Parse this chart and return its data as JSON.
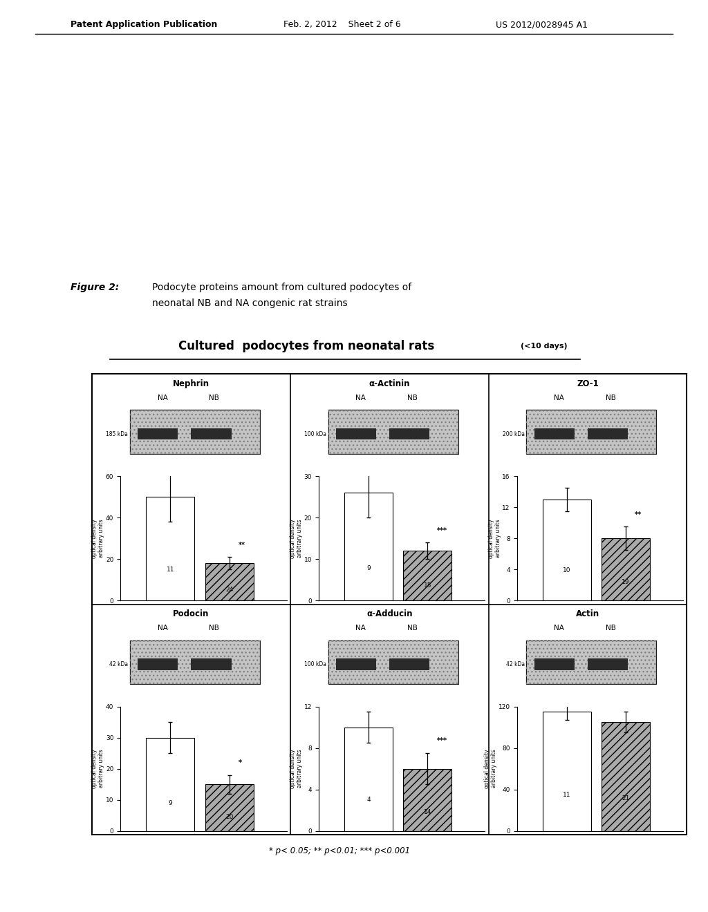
{
  "header_left": "Patent Application Publication",
  "header_mid": "Feb. 2, 2012    Sheet 2 of 6",
  "header_right": "US 2012/0028945 A1",
  "figure_label": "Figure 2:",
  "figure_caption_line1": "Podocyte proteins amount from cultured podocytes of",
  "figure_caption_line2": "neonatal NB and NA congenic rat strains",
  "main_title": "Cultured  podocytes from neonatal rats",
  "main_title_sub": "(<10 days)",
  "footer_note": "* p< 0.05; ** p<0.01; *** p<0.001",
  "panels": [
    {
      "title": "Nephrin",
      "kda_label": "185 kDa",
      "ylim": [
        0,
        60
      ],
      "yticks": [
        0,
        20,
        40,
        60
      ],
      "na_val": 50,
      "nb_val": 18,
      "na_err": 12,
      "nb_err": 3,
      "na_n": "11",
      "nb_n": "24",
      "sig": "**",
      "row": 0,
      "col": 0
    },
    {
      "title": "α-Actinin",
      "kda_label": "100 kDa",
      "ylim": [
        0,
        30
      ],
      "yticks": [
        0,
        10,
        20,
        30
      ],
      "na_val": 26,
      "nb_val": 12,
      "na_err": 6,
      "nb_err": 2,
      "na_n": "9",
      "nb_n": "15",
      "sig": "***",
      "row": 0,
      "col": 1
    },
    {
      "title": "ZO-1",
      "kda_label": "200 kDa",
      "ylim": [
        0,
        16
      ],
      "yticks": [
        0,
        4,
        8,
        12,
        16
      ],
      "na_val": 13,
      "nb_val": 8,
      "na_err": 1.5,
      "nb_err": 1.5,
      "na_n": "10",
      "nb_n": "19",
      "sig": "**",
      "row": 0,
      "col": 2
    },
    {
      "title": "Podocin",
      "kda_label": "42 kDa",
      "ylim": [
        0,
        40
      ],
      "yticks": [
        0,
        10,
        20,
        30,
        40
      ],
      "na_val": 30,
      "nb_val": 15,
      "na_err": 5,
      "nb_err": 3,
      "na_n": "9",
      "nb_n": "20",
      "sig": "*",
      "row": 1,
      "col": 0
    },
    {
      "title": "α-Adducin",
      "kda_label": "100 kDa",
      "ylim": [
        0,
        12
      ],
      "yticks": [
        0,
        4,
        8,
        12
      ],
      "na_val": 10,
      "nb_val": 6,
      "na_err": 1.5,
      "nb_err": 1.5,
      "na_n": "4",
      "nb_n": "14",
      "sig": "***",
      "row": 1,
      "col": 1
    },
    {
      "title": "Actin",
      "kda_label": "42 kDa",
      "ylim": [
        0,
        120
      ],
      "yticks": [
        0,
        40,
        80,
        120
      ],
      "na_val": 115,
      "nb_val": 105,
      "na_err": 8,
      "nb_err": 10,
      "na_n": "11",
      "nb_n": "21",
      "sig": null,
      "row": 1,
      "col": 2
    }
  ],
  "na_color": "white",
  "nb_color": "#aaaaaa",
  "nb_hatch": "///",
  "bar_width": 0.35,
  "bar_edge_color": "black",
  "ylabel": "optical density\narbitrary units"
}
